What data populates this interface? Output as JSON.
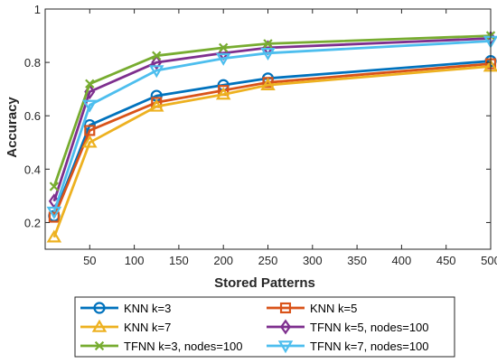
{
  "chart_data": {
    "type": "line",
    "xlabel": "Stored Patterns",
    "ylabel": "Accuracy",
    "xlim": [
      0,
      500
    ],
    "ylim": [
      0.1,
      1
    ],
    "x": [
      10,
      50,
      125,
      200,
      250,
      500
    ],
    "xticks": [
      50,
      100,
      150,
      200,
      250,
      300,
      350,
      400,
      450,
      500
    ],
    "yticks": [
      0.2,
      0.4,
      0.6,
      0.8,
      1
    ],
    "ytick_labels": [
      "0.2",
      "0.4",
      "0.6",
      "0.8",
      "1"
    ],
    "grid": false,
    "legend_position": "below",
    "series": [
      {
        "name": "KNN k=3",
        "color": "#0072BD",
        "marker": "circle",
        "values": [
          0.225,
          0.565,
          0.675,
          0.715,
          0.74,
          0.805
        ]
      },
      {
        "name": "KNN k=5",
        "color": "#D95319",
        "marker": "square",
        "values": [
          0.22,
          0.545,
          0.65,
          0.695,
          0.725,
          0.795
        ]
      },
      {
        "name": "KNN k=7",
        "color": "#EDB120",
        "marker": "triangle-up",
        "values": [
          0.145,
          0.5,
          0.635,
          0.68,
          0.715,
          0.785
        ]
      },
      {
        "name": "TFNN k=5, nodes=100",
        "color": "#7E2F8E",
        "marker": "diamond",
        "values": [
          0.28,
          0.69,
          0.8,
          0.835,
          0.855,
          0.89
        ]
      },
      {
        "name": "TFNN k=3, nodes=100",
        "color": "#77AC30",
        "marker": "x",
        "values": [
          0.335,
          0.72,
          0.825,
          0.855,
          0.87,
          0.9
        ]
      },
      {
        "name": "TFNN k=7, nodes=100",
        "color": "#4DBEEE",
        "marker": "triangle-down",
        "values": [
          0.24,
          0.64,
          0.77,
          0.815,
          0.835,
          0.88
        ]
      }
    ]
  }
}
